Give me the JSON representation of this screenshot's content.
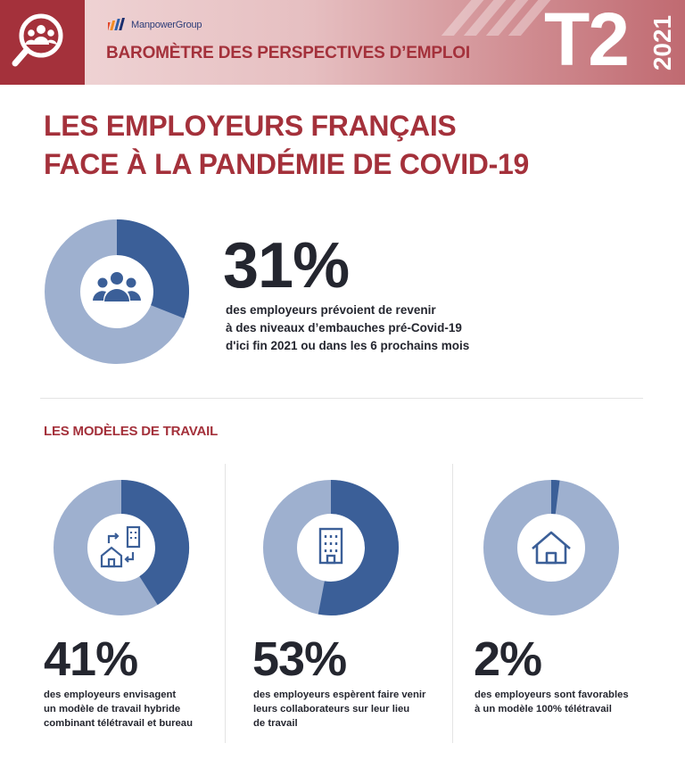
{
  "header": {
    "brand": "ManpowerGroup",
    "barometer_title": "BAROMÈTRE DES PERSPECTIVES D’EMPLOI",
    "quarter": "T2",
    "year": "2021",
    "icon": "team-search-icon"
  },
  "main_title": {
    "line1": "LES EMPLOYEURS FRANÇAIS",
    "line2": "FACE À LA PANDÉMIE DE COVID-19"
  },
  "hero": {
    "value": 31,
    "percent_label": "31%",
    "desc_lines": [
      "des employeurs prévoient de revenir",
      "à des niveaux d’embauches pré-Covid-19",
      "d'ici fin 2021 ou dans les 6 prochains mois"
    ],
    "icon": "people-group-icon"
  },
  "section_title": "LES MODÈLES DE TRAVAIL",
  "stats": [
    {
      "value": 41,
      "percent_label": "41%",
      "icon": "hybrid-work-icon",
      "desc_lines": [
        "des employeurs envisagent",
        "un modèle de travail hybride",
        "combinant télétravail et bureau"
      ]
    },
    {
      "value": 53,
      "percent_label": "53%",
      "icon": "office-building-icon",
      "desc_lines": [
        "des employeurs espèrent faire venir",
        "leurs collaborateurs sur leur lieu",
        "de travail"
      ]
    },
    {
      "value": 2,
      "percent_label": "2%",
      "icon": "home-icon",
      "desc_lines": [
        "des employeurs sont favorables",
        "à un modèle 100% télétravail"
      ]
    }
  ],
  "colors": {
    "brand_red": "#a4313b",
    "ring_dark": "#3b5f98",
    "ring_light": "#9eb0cf",
    "text_dark": "#24262f"
  }
}
